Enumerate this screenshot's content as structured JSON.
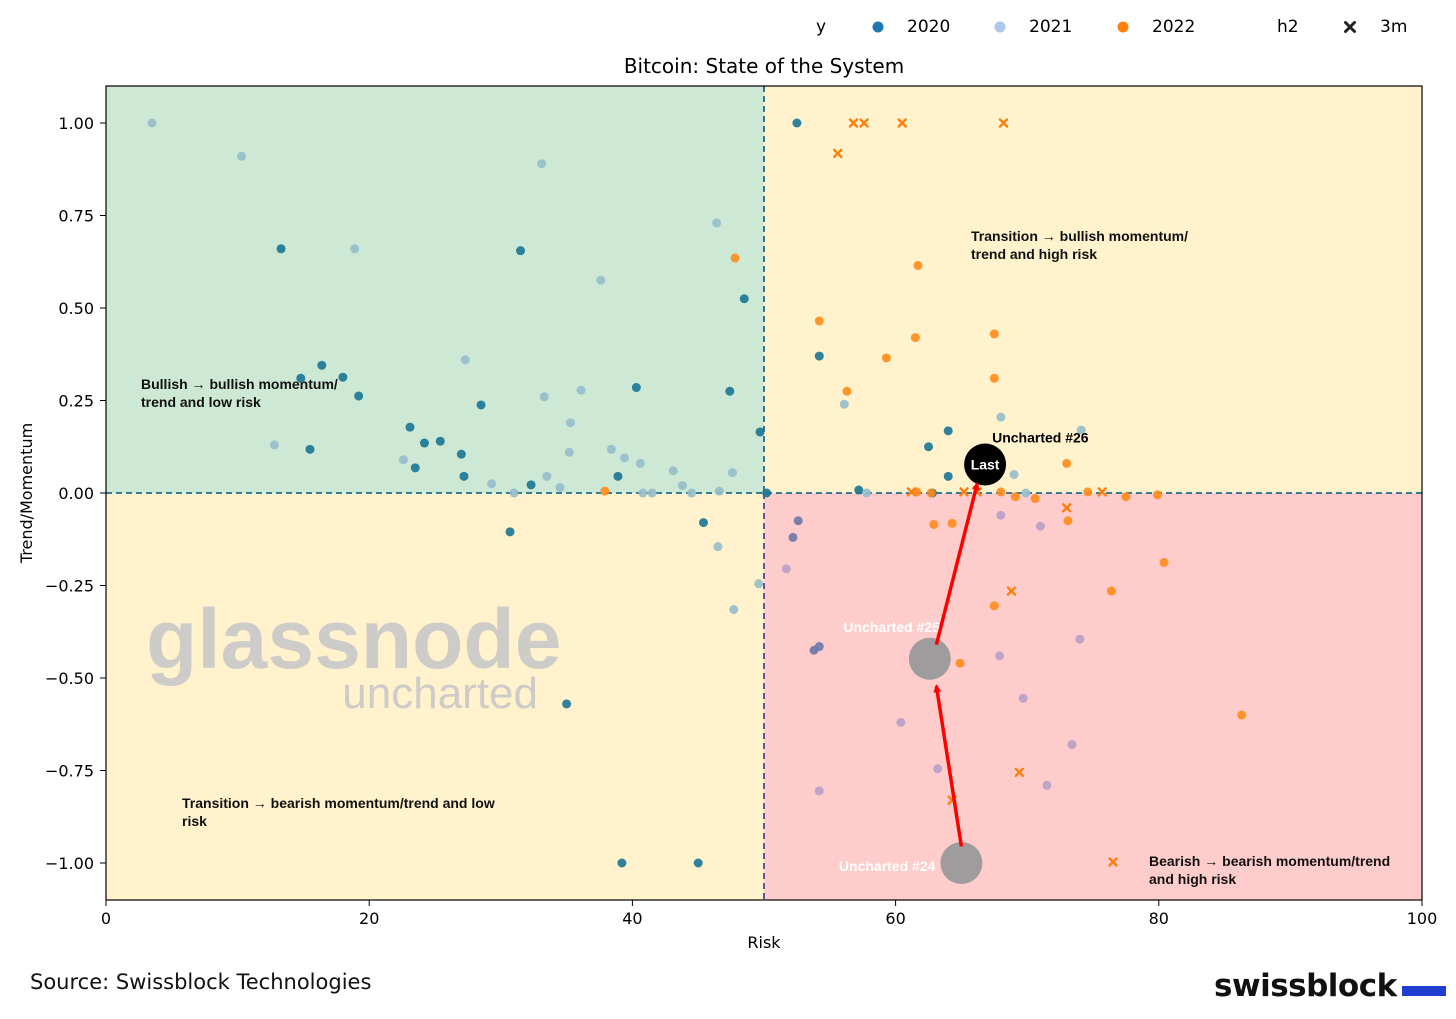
{
  "chart_data": {
    "type": "scatter",
    "title": "Bitcoin: State of the System",
    "xlabel": "Risk",
    "ylabel": "Trend/Momentum",
    "xlim": [
      0,
      100
    ],
    "ylim": [
      -1.1,
      1.1
    ],
    "xticks": [
      0,
      20,
      40,
      60,
      80,
      100
    ],
    "yticks": [
      1.0,
      0.75,
      0.5,
      0.25,
      0.0,
      -0.25,
      -0.5,
      -0.75,
      -1.0
    ],
    "xtick_labels": [
      "0",
      "20",
      "40",
      "60",
      "80",
      "100"
    ],
    "ytick_labels": [
      "1.00",
      "0.75",
      "0.50",
      "0.25",
      "0.00",
      "−0.25",
      "−0.50",
      "−0.75",
      "−1.00"
    ],
    "grid": false,
    "legend_placement": "top",
    "legend": {
      "hue_title": "y",
      "hue_entries": [
        {
          "label": "2020",
          "color": "#1f77b4"
        },
        {
          "label": "2021",
          "color": "#aec7e8"
        },
        {
          "label": "2022",
          "color": "#ff7f0e"
        }
      ],
      "style_title": "h2",
      "style_entries": [
        {
          "label": "3m",
          "marker": "x"
        }
      ]
    },
    "quadrant_colors": {
      "bullish": "#cde8d4",
      "transition": "#fff2cc",
      "bearish": "#ffcccc"
    },
    "quadrant_labels": {
      "top_left": "Bullish → bullish momentum/ trend and low risk",
      "top_right": "Transition → bullish momentum/ trend and high risk",
      "bottom_left": "Transition → bearish momentum/trend and low risk",
      "bottom_right": "Bearish → bearish momentum/trend and high risk"
    },
    "thresholds": {
      "x": 50,
      "y": 0
    },
    "series": [
      {
        "name": "2020",
        "color": "#1a7494",
        "points": [
          [
            52.5,
            1.0
          ],
          [
            13.3,
            0.66
          ],
          [
            31.5,
            0.655
          ],
          [
            48.5,
            0.525
          ],
          [
            14.8,
            0.31
          ],
          [
            16.4,
            0.345
          ],
          [
            18.0,
            0.313
          ],
          [
            19.2,
            0.262
          ],
          [
            15.5,
            0.118
          ],
          [
            23.1,
            0.178
          ],
          [
            24.2,
            0.135
          ],
          [
            25.4,
            0.14
          ],
          [
            23.5,
            0.068
          ],
          [
            27.0,
            0.105
          ],
          [
            27.2,
            0.045
          ],
          [
            28.5,
            0.238
          ],
          [
            40.3,
            0.285
          ],
          [
            47.4,
            0.275
          ],
          [
            49.7,
            0.165
          ],
          [
            32.3,
            0.022
          ],
          [
            38.9,
            0.045
          ],
          [
            30.7,
            -0.105
          ],
          [
            45.4,
            -0.08
          ],
          [
            54.2,
            0.37
          ],
          [
            57.2,
            0.008
          ],
          [
            62.5,
            0.125
          ],
          [
            64.0,
            0.168
          ],
          [
            64.0,
            0.045
          ],
          [
            62.8,
            0.0
          ],
          [
            50.2,
            0.0
          ],
          [
            35.0,
            -0.57
          ],
          [
            39.2,
            -1.0
          ],
          [
            45.0,
            -1.0
          ]
        ]
      },
      {
        "name": "2021",
        "color": "#96bccb",
        "points": [
          [
            3.5,
            1.0
          ],
          [
            10.3,
            0.91
          ],
          [
            33.1,
            0.89
          ],
          [
            18.9,
            0.66
          ],
          [
            46.4,
            0.73
          ],
          [
            37.6,
            0.575
          ],
          [
            27.3,
            0.36
          ],
          [
            12.8,
            0.13
          ],
          [
            22.6,
            0.09
          ],
          [
            29.3,
            0.025
          ],
          [
            31.0,
            0.0
          ],
          [
            33.3,
            0.26
          ],
          [
            35.3,
            0.19
          ],
          [
            36.1,
            0.278
          ],
          [
            34.5,
            0.015
          ],
          [
            33.5,
            0.045
          ],
          [
            35.2,
            0.11
          ],
          [
            38.4,
            0.118
          ],
          [
            39.4,
            0.095
          ],
          [
            40.6,
            0.08
          ],
          [
            40.8,
            0.0
          ],
          [
            41.5,
            0.0
          ],
          [
            43.1,
            0.06
          ],
          [
            43.8,
            0.02
          ],
          [
            44.5,
            0.0
          ],
          [
            46.6,
            0.005
          ],
          [
            47.6,
            0.055
          ],
          [
            46.5,
            -0.145
          ],
          [
            47.7,
            -0.315
          ],
          [
            49.6,
            -0.245
          ],
          [
            56.1,
            0.24
          ],
          [
            57.8,
            0.0
          ],
          [
            68.0,
            0.205
          ],
          [
            69.0,
            0.05
          ],
          [
            69.9,
            0.0
          ],
          [
            74.1,
            0.17
          ]
        ]
      },
      {
        "name": "2022",
        "color": "#ff8c1a",
        "points": [
          [
            47.8,
            0.635
          ],
          [
            61.7,
            0.615
          ],
          [
            54.2,
            0.465
          ],
          [
            59.3,
            0.365
          ],
          [
            61.5,
            0.42
          ],
          [
            67.5,
            0.43
          ],
          [
            67.5,
            0.31
          ],
          [
            56.3,
            0.275
          ],
          [
            73.0,
            0.08
          ],
          [
            37.9,
            0.005
          ],
          [
            61.6,
            0.003
          ],
          [
            62.7,
            0.0
          ],
          [
            68.0,
            0.003
          ],
          [
            69.1,
            -0.01
          ],
          [
            70.6,
            -0.015
          ],
          [
            74.6,
            0.003
          ],
          [
            77.5,
            -0.01
          ],
          [
            79.9,
            -0.005
          ],
          [
            62.9,
            -0.085
          ],
          [
            64.3,
            -0.082
          ],
          [
            73.1,
            -0.075
          ],
          [
            80.4,
            -0.188
          ],
          [
            76.4,
            -0.265
          ],
          [
            67.5,
            -0.305
          ],
          [
            64.9,
            -0.46
          ],
          [
            86.3,
            -0.6
          ]
        ]
      },
      {
        "name": "",
        "color": "#6a78a8",
        "points": [
          [
            52.6,
            -0.075
          ],
          [
            52.2,
            -0.12
          ],
          [
            54.2,
            -0.415
          ],
          [
            53.8,
            -0.425
          ]
        ]
      },
      {
        "name": "",
        "color": "#b8a0c8",
        "points": [
          [
            51.7,
            -0.205
          ],
          [
            68.0,
            -0.06
          ],
          [
            71.0,
            -0.09
          ],
          [
            67.9,
            -0.44
          ],
          [
            69.7,
            -0.555
          ],
          [
            74.0,
            -0.395
          ],
          [
            60.4,
            -0.62
          ],
          [
            73.4,
            -0.68
          ],
          [
            63.2,
            -0.745
          ],
          [
            71.5,
            -0.79
          ],
          [
            54.2,
            -0.805
          ]
        ]
      },
      {
        "name": "3m",
        "marker": "x",
        "color": "#ff7f0e",
        "points": [
          [
            56.8,
            1.0
          ],
          [
            57.6,
            1.0
          ],
          [
            60.5,
            1.0
          ],
          [
            68.2,
            1.0
          ],
          [
            55.6,
            0.918
          ],
          [
            61.2,
            0.003
          ],
          [
            65.2,
            0.003
          ],
          [
            66.2,
            0.003
          ],
          [
            75.7,
            0.003
          ],
          [
            73.0,
            -0.04
          ],
          [
            68.8,
            -0.265
          ],
          [
            69.4,
            -0.755
          ],
          [
            64.3,
            -0.83
          ]
        ]
      }
    ],
    "highlights": [
      {
        "label": "Uncharted #24",
        "x": 65.0,
        "y": -1.0,
        "color": "#999999"
      },
      {
        "label": "Uncharted #25",
        "x": 62.6,
        "y": -0.448,
        "color": "#999999"
      },
      {
        "label": "Uncharted #26",
        "x": 66.8,
        "y": 0.077,
        "color": "#000000",
        "marker_text": "Last"
      }
    ],
    "arrows": [
      {
        "from": [
          65.0,
          -0.955
        ],
        "to": [
          63.1,
          -0.522
        ],
        "color": "#ff0000"
      },
      {
        "from": [
          63.1,
          -0.41
        ],
        "to": [
          66.2,
          0.025
        ],
        "color": "#ff0000"
      }
    ]
  },
  "watermark": {
    "line1": "glassnode",
    "line2": "uncharted"
  },
  "source": "Source: Swissblock Technologies",
  "brand": "swissblock"
}
